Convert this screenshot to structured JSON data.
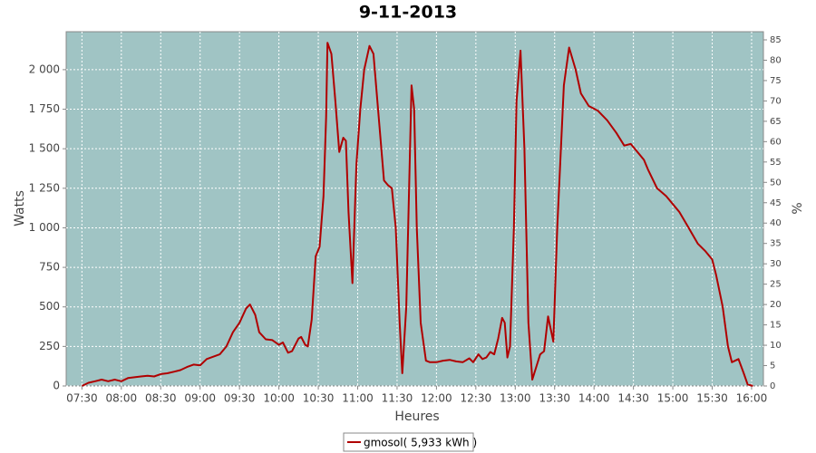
{
  "chart_data": {
    "type": "line",
    "title": "9-11-2013",
    "xlabel": "Heures",
    "ylabel": "Watts",
    "y2label": "%",
    "x": [
      "07:30",
      "07:35",
      "07:40",
      "07:45",
      "07:50",
      "07:55",
      "08:00",
      "08:05",
      "08:10",
      "08:15",
      "08:20",
      "08:25",
      "08:30",
      "08:35",
      "08:40",
      "08:45",
      "08:50",
      "08:55",
      "09:00",
      "09:05",
      "09:10",
      "09:15",
      "09:20",
      "09:25",
      "09:30",
      "09:35",
      "09:38",
      "09:42",
      "09:45",
      "09:50",
      "09:55",
      "10:00",
      "10:03",
      "10:07",
      "10:10",
      "10:15",
      "10:17",
      "10:20",
      "10:22",
      "10:25",
      "10:28",
      "10:31",
      "10:34",
      "10:36",
      "10:37",
      "10:40",
      "10:43",
      "10:46",
      "10:49",
      "10:51",
      "10:53",
      "10:56",
      "10:59",
      "11:02",
      "11:05",
      "11:09",
      "11:12",
      "11:16",
      "11:20",
      "11:23",
      "11:26",
      "11:29",
      "11:32",
      "11:34",
      "11:37",
      "11:41",
      "11:43",
      "11:45",
      "11:48",
      "11:52",
      "11:55",
      "12:00",
      "12:05",
      "12:10",
      "12:15",
      "12:20",
      "12:25",
      "12:28",
      "12:32",
      "12:35",
      "12:38",
      "12:41",
      "12:44",
      "12:47",
      "12:50",
      "12:52",
      "12:54",
      "12:56",
      "12:59",
      "13:01",
      "13:04",
      "13:07",
      "13:10",
      "13:13",
      "13:19",
      "13:22",
      "13:25",
      "13:29",
      "13:32",
      "13:37",
      "13:41",
      "13:46",
      "13:50",
      "13:56",
      "14:03",
      "14:10",
      "14:17",
      "14:23",
      "14:28",
      "14:31",
      "14:38",
      "14:41",
      "14:48",
      "14:55",
      "15:02",
      "15:05",
      "15:12",
      "15:19",
      "15:25",
      "15:30",
      "15:33",
      "15:38",
      "15:42",
      "15:45",
      "15:50",
      "15:54",
      "15:57",
      "16:01"
    ],
    "series": [
      {
        "name": "gmosol( 5,933 kWh )",
        "color": "#b00000",
        "values": [
          0,
          20,
          30,
          40,
          30,
          40,
          30,
          50,
          55,
          60,
          65,
          60,
          75,
          80,
          90,
          100,
          120,
          135,
          130,
          170,
          185,
          200,
          250,
          340,
          400,
          490,
          515,
          450,
          340,
          295,
          290,
          260,
          275,
          210,
          220,
          300,
          310,
          260,
          250,
          420,
          820,
          880,
          1200,
          1700,
          2170,
          2100,
          1800,
          1480,
          1570,
          1550,
          1100,
          650,
          1400,
          1750,
          2000,
          2150,
          2100,
          1700,
          1300,
          1270,
          1250,
          1000,
          400,
          80,
          500,
          1900,
          1750,
          1000,
          400,
          160,
          150,
          150,
          160,
          165,
          155,
          150,
          175,
          150,
          200,
          170,
          180,
          215,
          200,
          300,
          430,
          400,
          180,
          250,
          1000,
          1800,
          2120,
          1500,
          400,
          40,
          200,
          220,
          440,
          280,
          1000,
          1900,
          2140,
          2000,
          1850,
          1770,
          1740,
          1680,
          1600,
          1520,
          1530,
          1500,
          1430,
          1370,
          1250,
          1200,
          1130,
          1100,
          1000,
          900,
          850,
          800,
          700,
          500,
          250,
          150,
          170,
          80,
          10,
          0
        ]
      }
    ],
    "xlim": [
      "07:18",
      "16:09"
    ],
    "xticks": [
      "07:30",
      "08:00",
      "08:30",
      "09:00",
      "09:30",
      "10:00",
      "10:30",
      "11:00",
      "11:30",
      "12:00",
      "12:30",
      "13:00",
      "13:30",
      "14:00",
      "14:30",
      "15:00",
      "15:30",
      "16:00"
    ],
    "ylim": [
      0,
      2240
    ],
    "yticks": [
      0,
      250,
      500,
      750,
      {
        "value": 1000,
        "label": "1 000"
      },
      {
        "value": 1250,
        "label": "1 250"
      },
      {
        "value": 1500,
        "label": "1 500"
      },
      {
        "value": 1750,
        "label": "1 750"
      },
      {
        "value": 2000,
        "label": "2 000"
      }
    ],
    "y2lim": [
      0,
      87
    ],
    "y2ticks": [
      0,
      5,
      10,
      15,
      20,
      25,
      30,
      35,
      40,
      45,
      50,
      55,
      60,
      65,
      70,
      75,
      80,
      85
    ],
    "grid": true
  }
}
